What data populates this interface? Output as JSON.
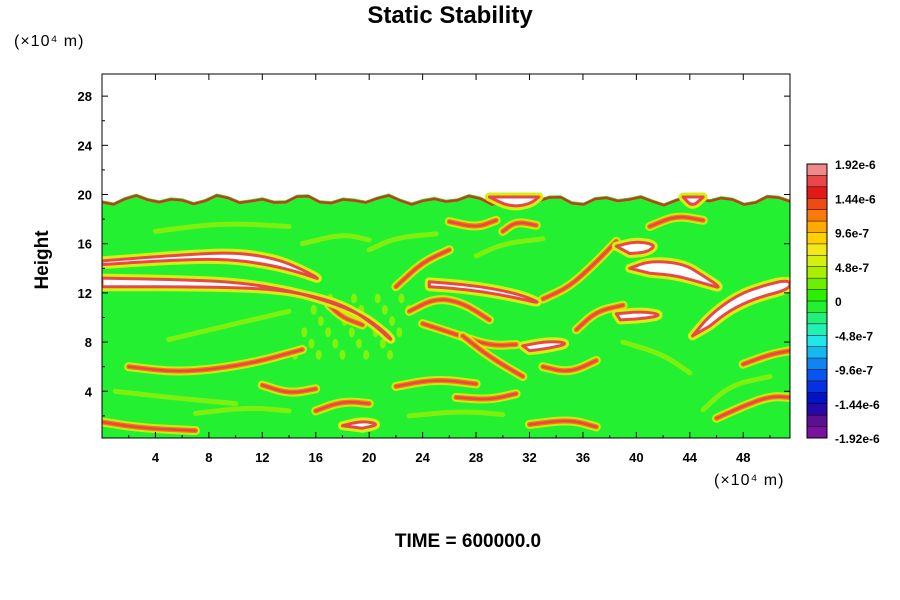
{
  "chart_data": {
    "type": "heatmap",
    "title": "Static Stability",
    "ylabel": "Height",
    "xlabel": "",
    "x_unit": "(×10⁴ m)",
    "y_unit": "(×10⁴ m)",
    "xlim": [
      0,
      51.5
    ],
    "ylim": [
      0.2,
      29.8
    ],
    "x_ticks": [
      "4",
      "8",
      "12",
      "16",
      "20",
      "24",
      "28",
      "32",
      "36",
      "40",
      "44",
      "48"
    ],
    "y_ticks": [
      "4",
      "8",
      "12",
      "16",
      "20",
      "24",
      "28"
    ],
    "x_tick_values": [
      4,
      8,
      12,
      16,
      20,
      24,
      28,
      32,
      36,
      40,
      44,
      48
    ],
    "y_tick_values": [
      4,
      8,
      12,
      16,
      20,
      24,
      28
    ],
    "model_top_height": 19.7,
    "background_level": 0,
    "colorbar": {
      "labels": [
        "1.92e-6",
        "1.44e-6",
        "9.6e-7",
        "4.8e-7",
        "0",
        "-4.8e-7",
        "-9.6e-7",
        "-1.44e-6",
        "-1.92e-6"
      ],
      "values": [
        1.92e-06,
        1.44e-06,
        9.6e-07,
        4.8e-07,
        0,
        -4.8e-07,
        -9.6e-07,
        -1.44e-06,
        -1.92e-06
      ],
      "colors": [
        "#f08a8a",
        "#ea4848",
        "#e41a1a",
        "#ee4a12",
        "#f97a0c",
        "#ffaa00",
        "#ffd000",
        "#f4e81a",
        "#d4f010",
        "#a6f000",
        "#6cf000",
        "#2cf000",
        "#22f030",
        "#22f07a",
        "#22f0b4",
        "#20e8e8",
        "#16b8f0",
        "#1084f0",
        "#0a55f0",
        "#0630e0",
        "#0412c6",
        "#2a08a8",
        "#5a1090",
        "#7a10a0"
      ]
    },
    "features": [
      {
        "id": "jet-lower",
        "level": "1.92e-6",
        "points": [
          [
            0,
            12.5
          ],
          [
            8,
            12.5
          ],
          [
            13,
            12.3
          ],
          [
            16,
            11.7
          ],
          [
            18.5,
            10.8
          ],
          [
            20.5,
            9.3
          ],
          [
            21.8,
            8.0
          ],
          [
            21.3,
            8.7
          ],
          [
            19.5,
            10.2
          ],
          [
            17,
            11.3
          ],
          [
            14,
            12.2
          ],
          [
            10,
            12.9
          ],
          [
            5,
            13.1
          ],
          [
            0,
            13.2
          ]
        ]
      },
      {
        "id": "jet-upper",
        "level": "1.92e-6",
        "points": [
          [
            0,
            14.6
          ],
          [
            6,
            15.1
          ],
          [
            10,
            15.3
          ],
          [
            13,
            14.8
          ],
          [
            15,
            13.9
          ],
          [
            16.5,
            13.0
          ],
          [
            15,
            13.6
          ],
          [
            12.5,
            14.3
          ],
          [
            9,
            14.8
          ],
          [
            4,
            14.6
          ],
          [
            0,
            14.3
          ]
        ]
      },
      {
        "id": "patch-28",
        "level": "1.92e-6",
        "points": [
          [
            24.5,
            12.9
          ],
          [
            27,
            12.7
          ],
          [
            29.5,
            12.3
          ],
          [
            31.5,
            11.8
          ],
          [
            33,
            11.1
          ],
          [
            31,
            11.6
          ],
          [
            28.5,
            12.1
          ],
          [
            26,
            12.4
          ],
          [
            24.5,
            12.5
          ]
        ]
      },
      {
        "id": "patch-40-upper",
        "level": "1.92e-6",
        "points": [
          [
            38.5,
            15.8
          ],
          [
            40,
            16.2
          ],
          [
            41.5,
            15.9
          ],
          [
            40.8,
            15.3
          ],
          [
            39.5,
            15.2
          ]
        ]
      },
      {
        "id": "patch-42",
        "level": "1.92e-6",
        "points": [
          [
            39.5,
            14.0
          ],
          [
            41,
            14.6
          ],
          [
            43.5,
            14.4
          ],
          [
            45,
            13.4
          ],
          [
            46.5,
            12.3
          ],
          [
            45,
            12.8
          ],
          [
            43,
            13.4
          ],
          [
            41,
            13.6
          ]
        ]
      },
      {
        "id": "patch-39-lower",
        "level": "1.92e-6",
        "points": [
          [
            38.5,
            10.3
          ],
          [
            40.5,
            10.5
          ],
          [
            42,
            10.2
          ],
          [
            40.5,
            9.9
          ],
          [
            38.8,
            9.8
          ]
        ]
      },
      {
        "id": "east-plume",
        "level": "1.92e-6",
        "points": [
          [
            44.2,
            8.5
          ],
          [
            45.5,
            10.2
          ],
          [
            47.5,
            11.8
          ],
          [
            49.5,
            12.6
          ],
          [
            51.5,
            13.1
          ],
          [
            51.5,
            12.3
          ],
          [
            49,
            11.6
          ],
          [
            47,
            10.6
          ],
          [
            45.5,
            9.3
          ]
        ]
      },
      {
        "id": "patch-33",
        "level": "1.92e-6",
        "points": [
          [
            31.5,
            7.7
          ],
          [
            33.5,
            8.1
          ],
          [
            35,
            7.9
          ],
          [
            33.5,
            7.5
          ],
          [
            32,
            7.3
          ]
        ]
      },
      {
        "id": "patch-19",
        "level": "1.92e-6",
        "points": [
          [
            18,
            1.2
          ],
          [
            19.5,
            1.6
          ],
          [
            20.8,
            1.3
          ],
          [
            19.5,
            1.0
          ]
        ]
      },
      {
        "id": "cloud-top-36",
        "level": "1.92e-6",
        "points": [
          [
            29,
            19.8
          ],
          [
            30.5,
            19.0
          ],
          [
            32,
            19.2
          ],
          [
            32.7,
            19.8
          ]
        ]
      },
      {
        "id": "cloud-top-44",
        "level": "1.92e-6",
        "points": [
          [
            43.5,
            19.8
          ],
          [
            44.2,
            19.0
          ],
          [
            45,
            19.8
          ]
        ]
      }
    ],
    "streaks_positive": [
      [
        [
          0,
          1.5
        ],
        [
          3,
          1.0
        ],
        [
          7,
          0.8
        ]
      ],
      [
        [
          2,
          6.0
        ],
        [
          6,
          5.5
        ],
        [
          11,
          6.2
        ],
        [
          15,
          7.4
        ]
      ],
      [
        [
          17,
          11.0
        ],
        [
          18,
          10.0
        ],
        [
          19.5,
          9.4
        ]
      ],
      [
        [
          22,
          12.5
        ],
        [
          24,
          14.5
        ],
        [
          26,
          15.5
        ]
      ],
      [
        [
          23,
          10.5
        ],
        [
          25,
          11.6
        ],
        [
          27,
          11.2
        ],
        [
          29,
          9.8
        ]
      ],
      [
        [
          24,
          9.5
        ],
        [
          26,
          8.8
        ],
        [
          29,
          7.7
        ],
        [
          31,
          7.8
        ]
      ],
      [
        [
          27,
          8.5
        ],
        [
          29,
          6.8
        ],
        [
          31.5,
          5.2
        ]
      ],
      [
        [
          22,
          4.4
        ],
        [
          25,
          5.0
        ],
        [
          28,
          4.6
        ]
      ],
      [
        [
          26.5,
          3.5
        ],
        [
          29,
          3.3
        ],
        [
          31,
          3.8
        ]
      ],
      [
        [
          33,
          6.0
        ],
        [
          35,
          5.5
        ],
        [
          37,
          6.5
        ]
      ],
      [
        [
          33,
          11.5
        ],
        [
          35,
          12.5
        ],
        [
          37,
          14.5
        ],
        [
          38.5,
          16.2
        ]
      ],
      [
        [
          35.5,
          9.0
        ],
        [
          37,
          10.5
        ],
        [
          39,
          11.0
        ]
      ],
      [
        [
          32,
          1.3
        ],
        [
          35,
          1.7
        ],
        [
          37,
          1.1
        ]
      ],
      [
        [
          30,
          17.0
        ],
        [
          31,
          17.8
        ],
        [
          32.5,
          17.5
        ]
      ],
      [
        [
          26,
          17.8
        ],
        [
          28,
          17.3
        ],
        [
          29.5,
          17.9
        ]
      ],
      [
        [
          46,
          1.8
        ],
        [
          48,
          2.8
        ],
        [
          50,
          3.6
        ],
        [
          51.5,
          3.5
        ]
      ],
      [
        [
          48,
          6.2
        ],
        [
          50,
          7.0
        ],
        [
          51.5,
          7.3
        ]
      ],
      [
        [
          41,
          17.4
        ],
        [
          43,
          18.3
        ],
        [
          45,
          17.9
        ]
      ],
      [
        [
          16,
          2.4
        ],
        [
          18,
          3.2
        ],
        [
          20,
          3.0
        ]
      ],
      [
        [
          12,
          4.5
        ],
        [
          14,
          3.8
        ],
        [
          16,
          4.2
        ]
      ]
    ],
    "streaks_weak": [
      [
        [
          5,
          8.2
        ],
        [
          10,
          9.5
        ],
        [
          14,
          10.5
        ]
      ],
      [
        [
          1,
          4.0
        ],
        [
          5,
          3.5
        ],
        [
          10,
          3.0
        ]
      ],
      [
        [
          7,
          2.2
        ],
        [
          11,
          2.7
        ],
        [
          14,
          2.4
        ]
      ],
      [
        [
          23,
          2.0
        ],
        [
          27,
          2.4
        ],
        [
          30,
          2.1
        ]
      ],
      [
        [
          28,
          15.0
        ],
        [
          30,
          16.0
        ],
        [
          33,
          16.4
        ]
      ],
      [
        [
          20,
          15.5
        ],
        [
          22,
          16.5
        ],
        [
          25,
          16.8
        ]
      ],
      [
        [
          39,
          8.0
        ],
        [
          42,
          7.0
        ],
        [
          44,
          5.5
        ]
      ],
      [
        [
          45,
          2.5
        ],
        [
          47,
          4.5
        ],
        [
          50,
          5.2
        ]
      ],
      [
        [
          4,
          17.0
        ],
        [
          9,
          17.7
        ],
        [
          14,
          17.4
        ]
      ],
      [
        [
          15,
          16.0
        ],
        [
          18,
          16.8
        ],
        [
          20,
          16.3
        ]
      ]
    ],
    "wave_train": {
      "x_range": [
        14,
        22
      ],
      "y_range": [
        6.5,
        12
      ],
      "cells": 9,
      "level": "4.8e-7"
    },
    "cloud_top_fringe": {
      "y": 19.7,
      "level": "1.44e-6"
    }
  },
  "footer": {
    "time_label": "TIME = 600000.0"
  }
}
